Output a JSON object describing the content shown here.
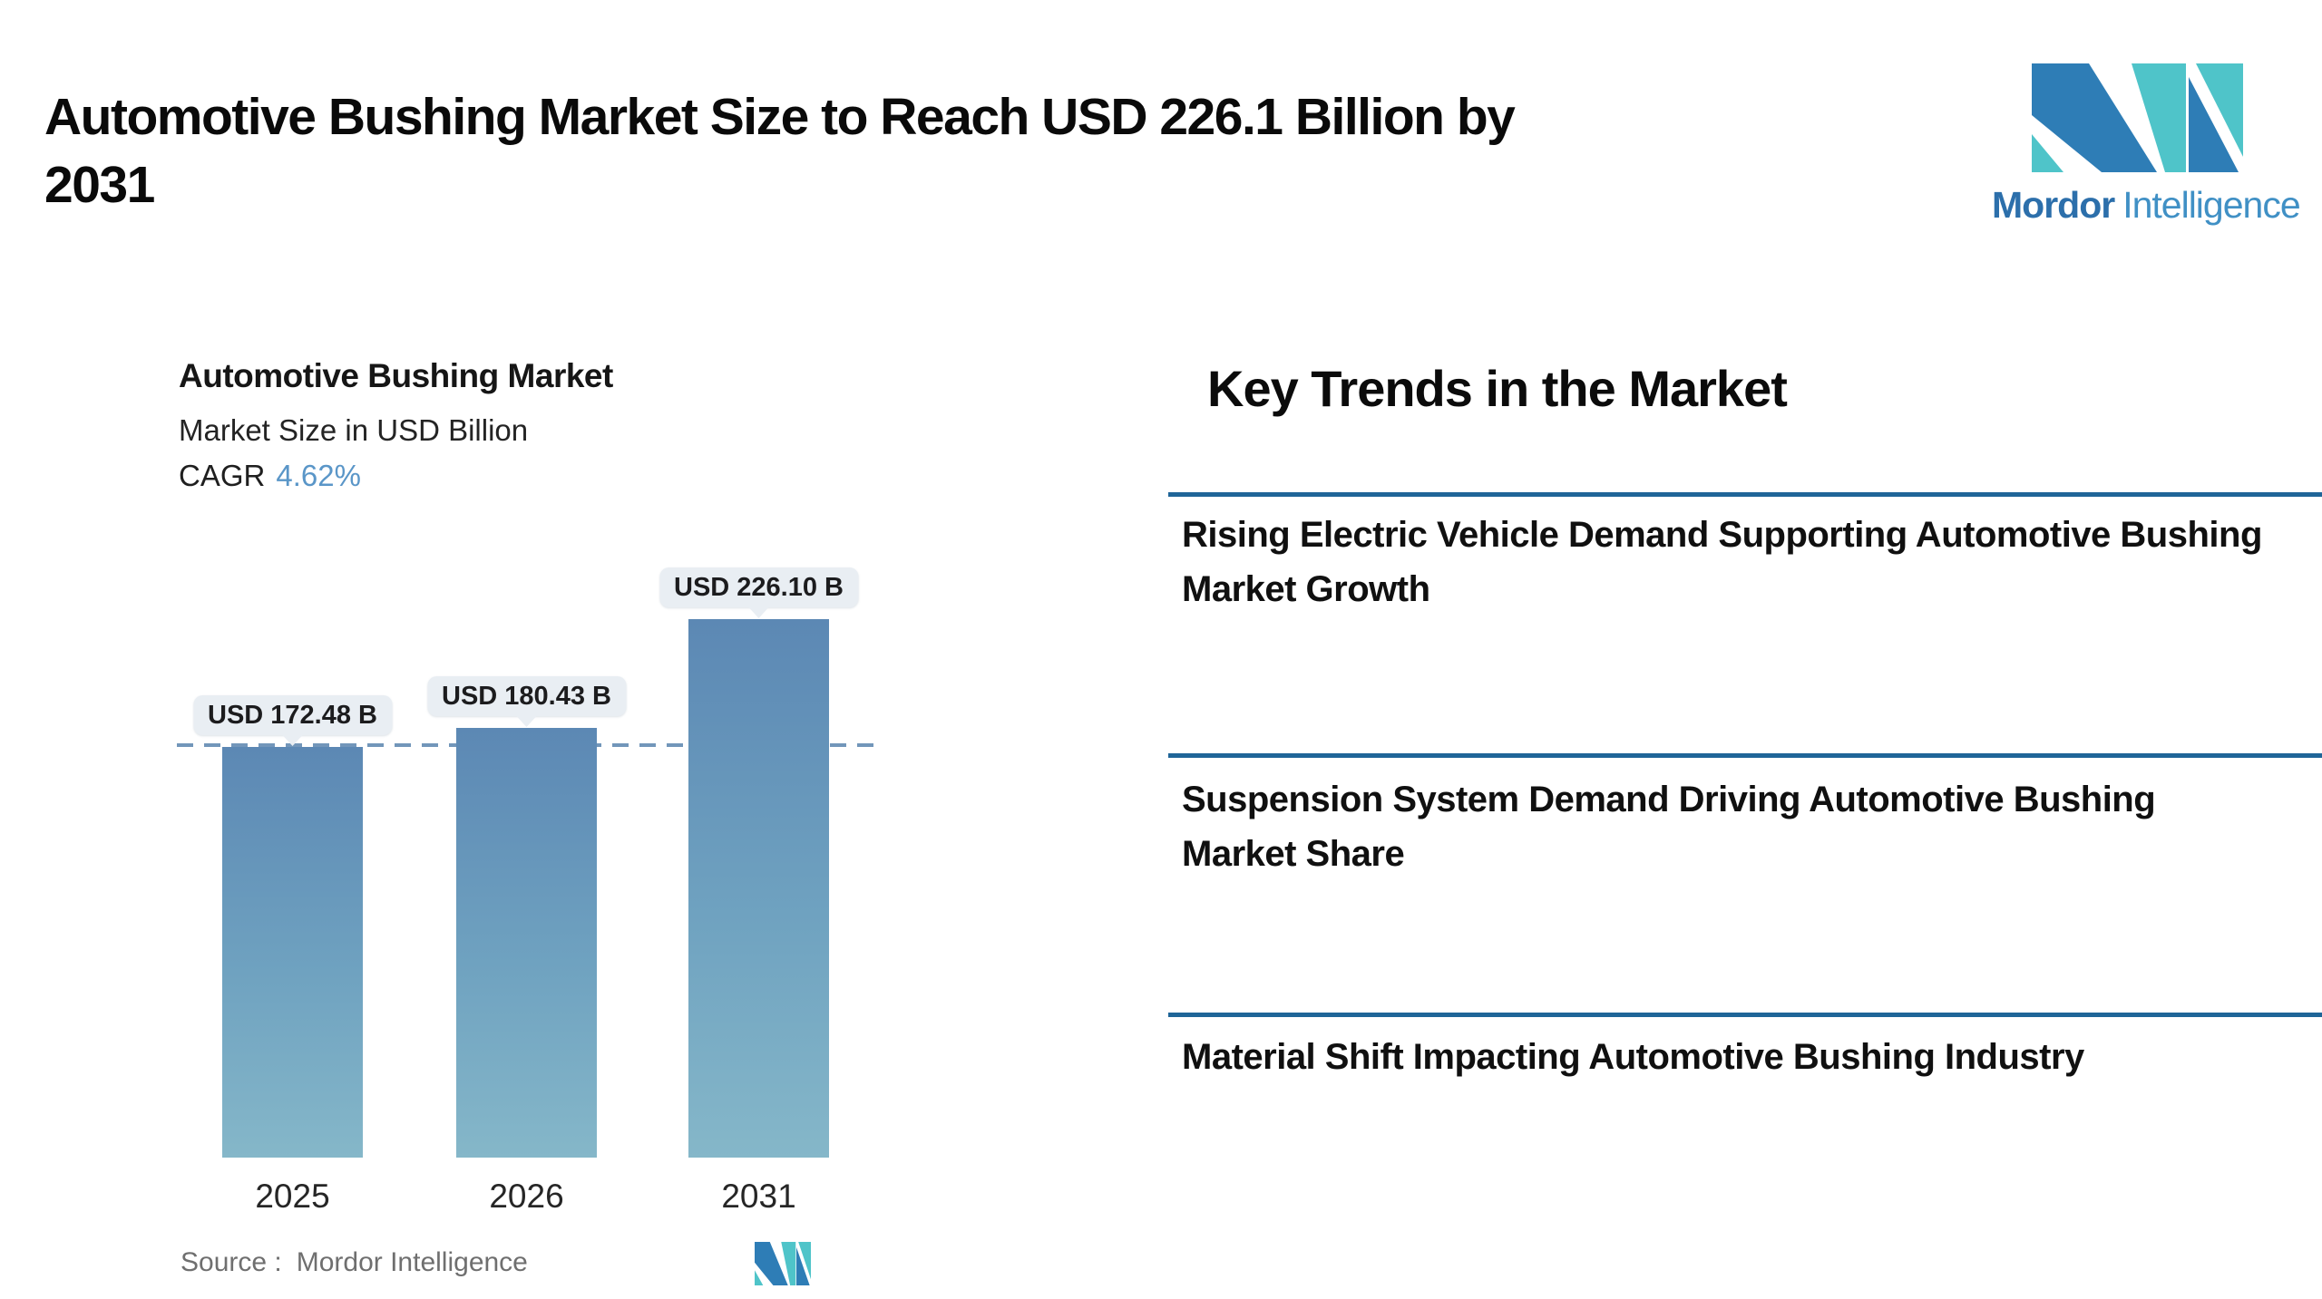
{
  "header": {
    "title_lines": [
      "Automotive Bushing Market Size to Reach USD 226.1 Billion by",
      "2031"
    ]
  },
  "brand": {
    "name_bold": "Mordor",
    "name_light": "Intelligence",
    "colors": {
      "blue": "#2e7db6",
      "teal": "#4fc4c9"
    }
  },
  "chart_card": {
    "title": "Automotive Bushing Market",
    "subtitle": "Market Size in USD Billion",
    "cagr_label": "CAGR",
    "cagr_value": "4.62%",
    "source_label": "Source :",
    "source_value": "Mordor Intelligence"
  },
  "chart_data": {
    "type": "bar",
    "title": "Automotive Bushing Market",
    "ylabel": "Market Size in USD Billion",
    "categories": [
      "2025",
      "2026",
      "2031"
    ],
    "values": [
      172.48,
      180.43,
      226.1
    ],
    "bar_labels": [
      "USD 172.48 B",
      "USD 180.43 B",
      "USD 226.10 B"
    ],
    "cagr_percent": 4.62,
    "ylim": [
      0,
      226.1
    ],
    "reference_line_value": 172.48,
    "reference_line_style": "dashed",
    "grid": false,
    "legend": false,
    "bar_color_top": "#5c88b4",
    "bar_color_bottom": "#85b7c9",
    "reference_line_color": "#7296ba",
    "label_box_color": "#e9eef3"
  },
  "key_trends": {
    "heading": "Key Trends in the Market",
    "divider_color": "#1f6598",
    "items": [
      "Rising Electric Vehicle Demand Supporting Automotive Bushing Market Growth",
      "Suspension System Demand Driving Automotive Bushing Market Share",
      "Material Shift Impacting Automotive Bushing Industry"
    ]
  }
}
